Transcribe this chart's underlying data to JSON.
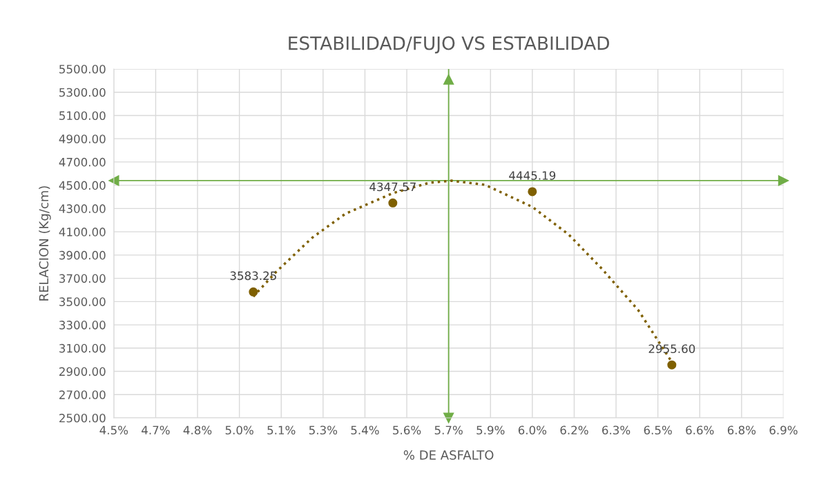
{
  "chart_data": {
    "type": "scatter",
    "title": "ESTABILIDAD/FUJO VS ESTABILIDAD",
    "xlabel": "% DE ASFALTO",
    "ylabel": "RELACION (Kg/cm)",
    "xlim": [
      4.5,
      6.9
    ],
    "xticks": [
      {
        "value": 4.5,
        "label": "4.5%"
      },
      {
        "value": 4.65,
        "label": "4.7%"
      },
      {
        "value": 4.8,
        "label": "4.8%"
      },
      {
        "value": 4.95,
        "label": "5.0%"
      },
      {
        "value": 5.1,
        "label": "5.1%"
      },
      {
        "value": 5.25,
        "label": "5.3%"
      },
      {
        "value": 5.4,
        "label": "5.4%"
      },
      {
        "value": 5.55,
        "label": "5.6%"
      },
      {
        "value": 5.7,
        "label": "5.7%"
      },
      {
        "value": 5.85,
        "label": "5.9%"
      },
      {
        "value": 6.0,
        "label": "6.0%"
      },
      {
        "value": 6.15,
        "label": "6.2%"
      },
      {
        "value": 6.3,
        "label": "6.3%"
      },
      {
        "value": 6.45,
        "label": "6.5%"
      },
      {
        "value": 6.6,
        "label": "6.6%"
      },
      {
        "value": 6.75,
        "label": "6.8%"
      },
      {
        "value": 6.9,
        "label": "6.9%"
      }
    ],
    "ylim": [
      2500,
      5500
    ],
    "yticks": [
      {
        "value": 2500,
        "label": "2500.00"
      },
      {
        "value": 2700,
        "label": "2700.00"
      },
      {
        "value": 2900,
        "label": "2900.00"
      },
      {
        "value": 3100,
        "label": "3100.00"
      },
      {
        "value": 3300,
        "label": "3300.00"
      },
      {
        "value": 3500,
        "label": "3500.00"
      },
      {
        "value": 3700,
        "label": "3700.00"
      },
      {
        "value": 3900,
        "label": "3900.00"
      },
      {
        "value": 4100,
        "label": "4100.00"
      },
      {
        "value": 4300,
        "label": "4300.00"
      },
      {
        "value": 4500,
        "label": "4500.00"
      },
      {
        "value": 4700,
        "label": "4700.00"
      },
      {
        "value": 4900,
        "label": "4900.00"
      },
      {
        "value": 5100,
        "label": "5100.00"
      },
      {
        "value": 5300,
        "label": "5300.00"
      },
      {
        "value": 5500,
        "label": "5500.00"
      }
    ],
    "grid": true,
    "legend": false,
    "series": [
      {
        "color": "#7f6000",
        "marker": "circle",
        "x": [
          5.0,
          5.5,
          6.0,
          6.5
        ],
        "values": [
          3583.25,
          4347.57,
          4445.19,
          2955.6
        ],
        "value_labels": [
          "3583.25",
          "4347.57",
          "4445.19",
          "2955.60"
        ]
      },
      {
        "type": "line",
        "color": "#7f6000",
        "line_style": "dotted",
        "marker": "none",
        "x": [
          5.0,
          5.08,
          5.21,
          5.33,
          5.5,
          5.63,
          5.71,
          5.83,
          6.0,
          6.13,
          6.25,
          6.38,
          6.5
        ],
        "values": [
          3543,
          3751,
          4047,
          4255,
          4432,
          4521,
          4539,
          4504,
          4314,
          4077,
          3780,
          3425,
          2980
        ]
      }
    ],
    "ref_lines": [
      {
        "axis": "x",
        "value": 5.7,
        "color": "#70ad47"
      },
      {
        "axis": "y",
        "value": 4540,
        "color": "#70ad47"
      }
    ]
  }
}
